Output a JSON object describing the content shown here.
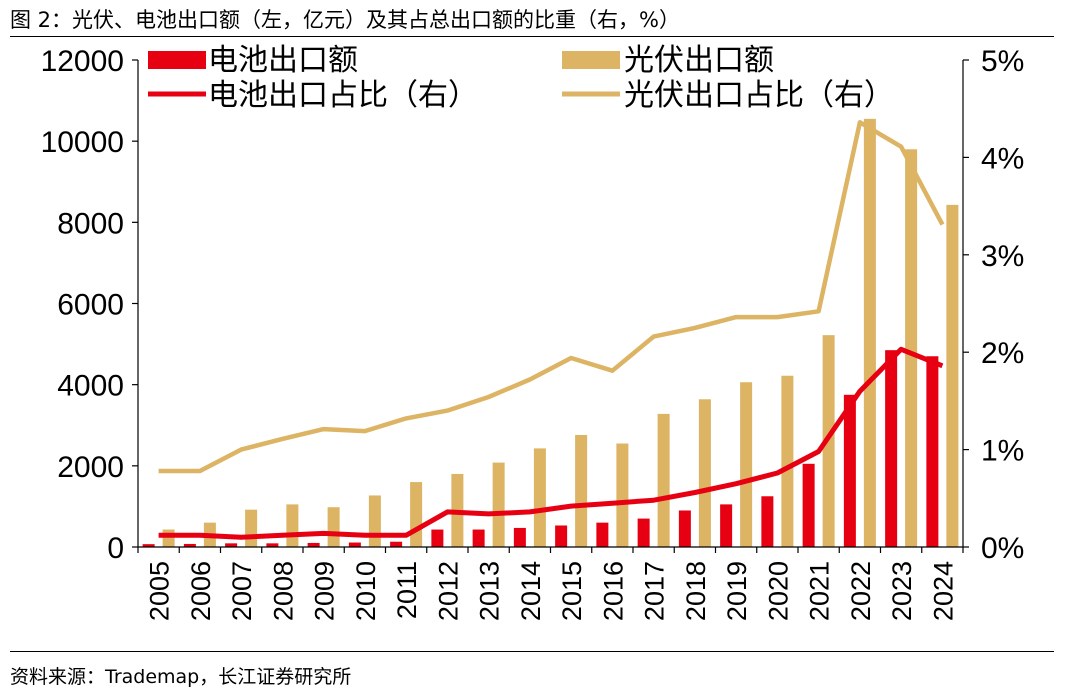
{
  "header": {
    "title": "图 2：光伏、电池出口额（左，亿元）及其占总出口额的比重（右，%）"
  },
  "footer": {
    "source": "资料来源：Trademap，长江证券研究所"
  },
  "colors": {
    "battery": "#e60012",
    "pv": "#dcb464",
    "axis": "#000000"
  },
  "chart_data": {
    "type": "bar+line",
    "title": "光伏、电池出口额（左，亿元）及其占总出口额的比重（右，%）",
    "categories": [
      "2005",
      "2006",
      "2007",
      "2008",
      "2009",
      "2010",
      "2011",
      "2012",
      "2013",
      "2014",
      "2015",
      "2016",
      "2017",
      "2018",
      "2019",
      "2020",
      "2021",
      "2022",
      "2023",
      "2024"
    ],
    "left_axis": {
      "min": 0,
      "max": 12000,
      "ticks": [
        "0",
        "2000",
        "4000",
        "6000",
        "8000",
        "10000",
        "12000"
      ]
    },
    "right_axis": {
      "min": 0,
      "max": 5,
      "ticks": [
        "0%",
        "1%",
        "2%",
        "3%",
        "4%",
        "5%"
      ]
    },
    "legend": {
      "battery_bar": "电池出口额",
      "pv_bar": "光伏出口额",
      "battery_line": "电池出口占比（右）",
      "pv_line": "光伏出口占比（右）"
    },
    "series": [
      {
        "name": "电池出口额",
        "kind": "bar",
        "axis": "left",
        "values": [
          70,
          75,
          90,
          90,
          100,
          110,
          130,
          430,
          430,
          470,
          530,
          600,
          700,
          900,
          1050,
          1250,
          2050,
          3750,
          4850,
          4700
        ]
      },
      {
        "name": "光伏出口额",
        "kind": "bar",
        "axis": "left",
        "values": [
          430,
          600,
          920,
          1050,
          980,
          1270,
          1600,
          1800,
          2080,
          2430,
          2760,
          2550,
          3280,
          3640,
          4060,
          4220,
          5220,
          10550,
          9800,
          8430
        ]
      },
      {
        "name": "电池出口占比（右）",
        "kind": "line",
        "axis": "right",
        "values": [
          0.12,
          0.12,
          0.1,
          0.12,
          0.14,
          0.12,
          0.12,
          0.36,
          0.34,
          0.36,
          0.42,
          0.45,
          0.48,
          0.56,
          0.65,
          0.76,
          0.98,
          1.6,
          2.03,
          1.86
        ]
      },
      {
        "name": "光伏出口占比（右）",
        "kind": "line",
        "axis": "right",
        "values": [
          0.78,
          0.78,
          1.0,
          1.11,
          1.21,
          1.19,
          1.32,
          1.4,
          1.54,
          1.72,
          1.94,
          1.81,
          2.16,
          2.25,
          2.36,
          2.36,
          2.42,
          4.36,
          4.11,
          3.31
        ]
      }
    ]
  }
}
